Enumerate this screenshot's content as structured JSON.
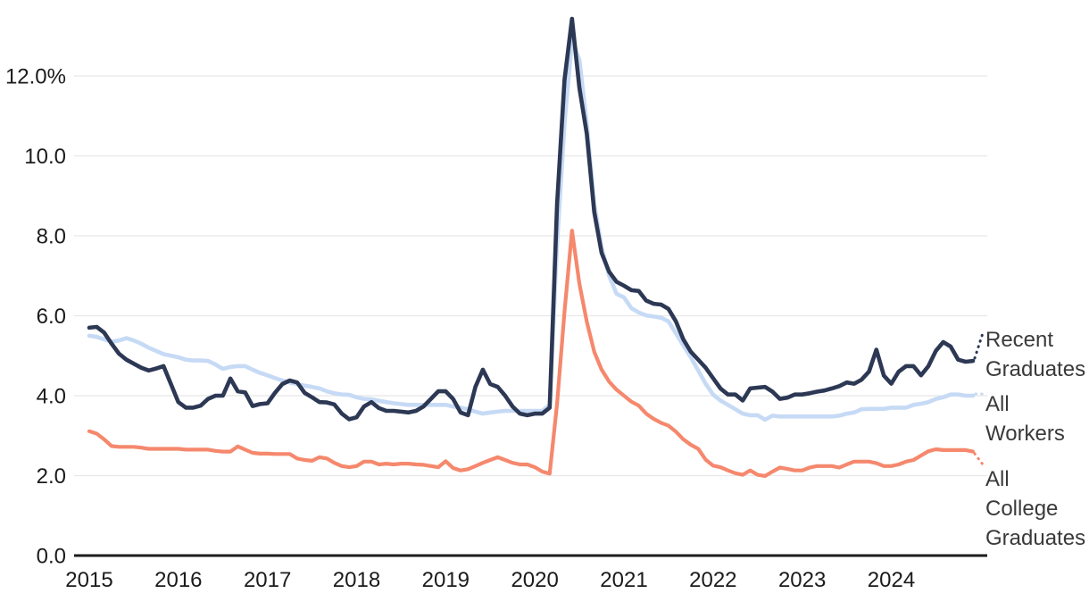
{
  "chart_data": {
    "type": "line",
    "unit": "percent",
    "x_monthly_start": "2015-01",
    "x_monthly_end": "2024-12",
    "x_tick_labels": [
      "2015",
      "2016",
      "2017",
      "2018",
      "2019",
      "2020",
      "2021",
      "2022",
      "2023",
      "2024"
    ],
    "y_ticks": [
      {
        "value": 0,
        "label": "0.0"
      },
      {
        "value": 2,
        "label": "2.0"
      },
      {
        "value": 4,
        "label": "4.0"
      },
      {
        "value": 6,
        "label": "6.0"
      },
      {
        "value": 8,
        "label": "8.0"
      },
      {
        "value": 10,
        "label": "10.0"
      },
      {
        "value": 12,
        "label": "12.0%"
      }
    ],
    "ylim": [
      0,
      13.6
    ],
    "grid": true,
    "grid_color": "#e8e8e8",
    "axis_color": "#1c1c1c",
    "legend_position": "right-of-plot",
    "series": [
      {
        "name": "Recent Graduates",
        "label_lines": [
          "Recent",
          "Graduates"
        ],
        "color": "#2c3854",
        "values": [
          5.7,
          5.72,
          5.58,
          5.3,
          5.05,
          4.9,
          4.8,
          4.7,
          4.63,
          4.68,
          4.74,
          4.29,
          3.84,
          3.7,
          3.7,
          3.75,
          3.92,
          4.0,
          4.0,
          4.43,
          4.11,
          4.08,
          3.74,
          3.79,
          3.81,
          4.07,
          4.29,
          4.38,
          4.33,
          4.07,
          3.96,
          3.84,
          3.83,
          3.78,
          3.55,
          3.41,
          3.46,
          3.73,
          3.84,
          3.69,
          3.62,
          3.62,
          3.6,
          3.58,
          3.62,
          3.73,
          3.92,
          4.11,
          4.11,
          3.92,
          3.58,
          3.51,
          4.22,
          4.65,
          4.29,
          4.22,
          4.0,
          3.73,
          3.55,
          3.51,
          3.55,
          3.55,
          3.7,
          8.8,
          11.9,
          13.43,
          11.7,
          10.55,
          8.6,
          7.57,
          7.1,
          6.85,
          6.75,
          6.64,
          6.62,
          6.38,
          6.3,
          6.28,
          6.17,
          5.86,
          5.41,
          5.1,
          4.9,
          4.7,
          4.44,
          4.18,
          4.03,
          4.03,
          3.88,
          4.18,
          4.2,
          4.22,
          4.1,
          3.92,
          3.95,
          4.03,
          4.03,
          4.06,
          4.1,
          4.13,
          4.18,
          4.24,
          4.33,
          4.3,
          4.4,
          4.6,
          5.15,
          4.5,
          4.3,
          4.6,
          4.74,
          4.74,
          4.51,
          4.74,
          5.12,
          5.34,
          5.23,
          4.9,
          4.85,
          4.87
        ]
      },
      {
        "name": "All Workers",
        "label_lines": [
          "All",
          "Workers"
        ],
        "color": "#c6daf5",
        "values": [
          5.5,
          5.47,
          5.41,
          5.35,
          5.38,
          5.44,
          5.38,
          5.3,
          5.2,
          5.12,
          5.04,
          5.0,
          4.96,
          4.9,
          4.88,
          4.88,
          4.87,
          4.78,
          4.67,
          4.72,
          4.74,
          4.74,
          4.65,
          4.57,
          4.51,
          4.44,
          4.38,
          4.33,
          4.29,
          4.25,
          4.22,
          4.18,
          4.11,
          4.06,
          4.03,
          4.02,
          3.96,
          3.92,
          3.91,
          3.87,
          3.84,
          3.81,
          3.79,
          3.77,
          3.77,
          3.77,
          3.77,
          3.77,
          3.77,
          3.73,
          3.7,
          3.66,
          3.6,
          3.55,
          3.58,
          3.6,
          3.62,
          3.62,
          3.62,
          3.62,
          3.62,
          3.62,
          3.77,
          7.8,
          10.8,
          12.9,
          12.4,
          10.8,
          8.8,
          7.7,
          7.0,
          6.55,
          6.46,
          6.19,
          6.08,
          6.01,
          5.98,
          5.95,
          5.86,
          5.56,
          5.26,
          4.96,
          4.63,
          4.3,
          4.03,
          3.88,
          3.77,
          3.66,
          3.55,
          3.51,
          3.51,
          3.4,
          3.5,
          3.48,
          3.48,
          3.48,
          3.48,
          3.48,
          3.48,
          3.48,
          3.48,
          3.5,
          3.55,
          3.58,
          3.66,
          3.67,
          3.67,
          3.67,
          3.7,
          3.7,
          3.7,
          3.77,
          3.8,
          3.84,
          3.92,
          3.96,
          4.03,
          4.03,
          4.0,
          4.0
        ]
      },
      {
        "name": "All College Graduates",
        "label_lines": [
          "All",
          "College",
          "Graduates"
        ],
        "color": "#f5886d",
        "values": [
          3.11,
          3.05,
          2.91,
          2.74,
          2.72,
          2.72,
          2.72,
          2.7,
          2.67,
          2.67,
          2.67,
          2.67,
          2.67,
          2.65,
          2.65,
          2.65,
          2.65,
          2.62,
          2.6,
          2.6,
          2.73,
          2.65,
          2.57,
          2.55,
          2.55,
          2.54,
          2.54,
          2.54,
          2.43,
          2.39,
          2.37,
          2.46,
          2.43,
          2.32,
          2.24,
          2.21,
          2.24,
          2.35,
          2.35,
          2.28,
          2.3,
          2.28,
          2.3,
          2.3,
          2.28,
          2.27,
          2.24,
          2.21,
          2.36,
          2.19,
          2.13,
          2.16,
          2.24,
          2.32,
          2.39,
          2.46,
          2.39,
          2.32,
          2.28,
          2.28,
          2.21,
          2.1,
          2.05,
          3.8,
          6.1,
          8.13,
          6.8,
          5.85,
          5.1,
          4.65,
          4.35,
          4.15,
          4.0,
          3.85,
          3.75,
          3.55,
          3.42,
          3.32,
          3.25,
          3.1,
          2.91,
          2.77,
          2.67,
          2.4,
          2.25,
          2.21,
          2.13,
          2.06,
          2.02,
          2.13,
          2.02,
          1.99,
          2.1,
          2.2,
          2.17,
          2.13,
          2.13,
          2.2,
          2.24,
          2.24,
          2.24,
          2.2,
          2.28,
          2.35,
          2.35,
          2.35,
          2.31,
          2.24,
          2.24,
          2.28,
          2.35,
          2.39,
          2.5,
          2.61,
          2.66,
          2.64,
          2.64,
          2.64,
          2.64,
          2.6
        ]
      }
    ]
  }
}
